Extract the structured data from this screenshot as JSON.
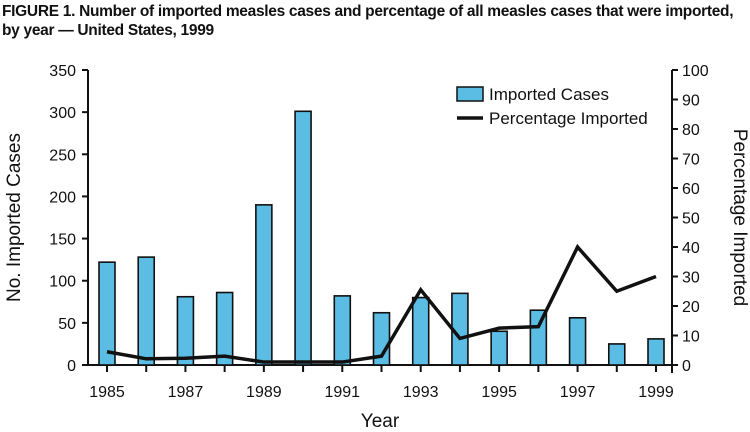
{
  "title": "FIGURE 1. Number of imported measles cases and percentage of all measles cases that were imported, by year — United States, 1999",
  "chart_data": {
    "type": "bar+line",
    "title": "FIGURE 1. Number of imported measles cases and percentage of all measles cases that were imported, by year — United States, 1999",
    "xlabel": "Year",
    "ylabel": "No. Imported Cases",
    "y2label": "Percentage Imported",
    "categories": [
      1985,
      1986,
      1987,
      1988,
      1989,
      1990,
      1991,
      1992,
      1993,
      1994,
      1995,
      1996,
      1997,
      1998,
      1999
    ],
    "x_tick_labels": [
      "1985",
      "1987",
      "1989",
      "1991",
      "1993",
      "1995",
      "1997",
      "1999"
    ],
    "ylim": [
      0,
      350
    ],
    "y_ticks": [
      0,
      50,
      100,
      150,
      200,
      250,
      300,
      350
    ],
    "y2lim": [
      0,
      100
    ],
    "y2_ticks": [
      0,
      10,
      20,
      30,
      40,
      50,
      60,
      70,
      80,
      90,
      100
    ],
    "grid": false,
    "legend_placement": "top-right",
    "series": [
      {
        "name": "Imported Cases",
        "type": "bar",
        "axis": "left",
        "color": "#5bbde4",
        "values": [
          122,
          128,
          81,
          86,
          190,
          301,
          82,
          62,
          80,
          85,
          40,
          65,
          56,
          25,
          31
        ]
      },
      {
        "name": "Percentage Imported",
        "type": "line",
        "axis": "right",
        "color": "#111111",
        "values": [
          4.5,
          2.1,
          2.3,
          3,
          1,
          1,
          1,
          3,
          25.5,
          9,
          12.5,
          13,
          40,
          25,
          30
        ]
      }
    ]
  }
}
